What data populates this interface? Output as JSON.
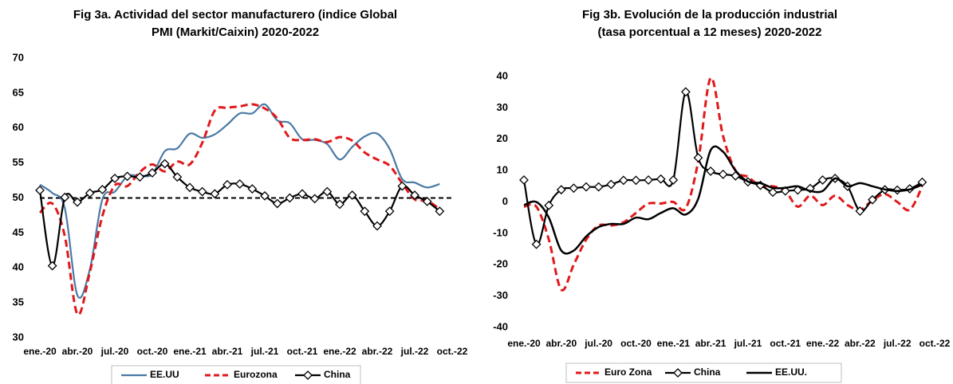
{
  "chart_data": [
    {
      "type": "line",
      "title": [
        "Fig 3a. Actividad del sector manufacturero (indice Global",
        "PMI (Markit/Caixin)  2020-2022"
      ],
      "categories": [
        "ene.-20",
        null,
        null,
        "abr.-20",
        null,
        null,
        "jul.-20",
        null,
        null,
        "oct.-20",
        null,
        null,
        "ene.-21",
        null,
        null,
        "abr.-21",
        null,
        null,
        "jul.-21",
        null,
        null,
        "oct.-21",
        null,
        null,
        "ene.-22",
        null,
        null,
        "abr.-22",
        null,
        null,
        "jul.-22",
        null,
        null,
        "oct.-22"
      ],
      "ylim": [
        30,
        70
      ],
      "yticks": [
        30,
        35,
        40,
        45,
        50,
        55,
        60,
        65,
        70
      ],
      "reference_line": 50,
      "series": [
        {
          "name": "EE.UU",
          "color": "#4a7aa6",
          "dash": false,
          "marker": "none",
          "values": [
            51.9,
            50.7,
            48.5,
            36.1,
            39.8,
            49.8,
            50.9,
            53.1,
            53.2,
            53.4,
            56.7,
            57.1,
            59.2,
            58.6,
            59.1,
            60.5,
            62.1,
            62.1,
            63.4,
            61.1,
            60.7,
            58.4,
            58.3,
            57.7,
            55.5,
            57.3,
            58.8,
            59.2,
            57.0,
            52.7,
            52.2,
            51.5,
            52.0,
            null
          ]
        },
        {
          "name": "Eurozona",
          "color": "#e0191b",
          "dash": true,
          "marker": "none",
          "values": [
            47.9,
            49.2,
            44.5,
            33.4,
            39.4,
            47.4,
            51.8,
            51.7,
            53.7,
            54.8,
            53.8,
            55.2,
            54.8,
            57.9,
            62.5,
            62.9,
            63.1,
            63.4,
            62.8,
            61.4,
            58.6,
            58.3,
            58.4,
            58.0,
            58.7,
            58.2,
            56.5,
            55.5,
            54.6,
            52.1,
            49.8,
            49.6,
            48.4,
            null
          ]
        },
        {
          "name": "China",
          "color": "#000000",
          "dash": false,
          "marker": "diamond",
          "values": [
            51.1,
            40.3,
            50.1,
            49.4,
            50.7,
            51.2,
            52.8,
            53.1,
            53.0,
            53.6,
            54.9,
            53.0,
            51.5,
            50.9,
            50.6,
            51.9,
            52.0,
            51.3,
            50.3,
            49.2,
            50.0,
            50.6,
            49.9,
            50.9,
            49.1,
            50.4,
            48.1,
            46.0,
            48.1,
            51.7,
            50.4,
            49.5,
            48.1,
            null
          ]
        }
      ]
    },
    {
      "type": "line",
      "title": [
        "Fig 3b. Evolución de la producción industrial",
        "(tasa porcentual a 12 meses) 2020-2022"
      ],
      "categories": [
        "ene.-20",
        null,
        null,
        "abr.-20",
        null,
        null,
        "jul.-20",
        null,
        null,
        "oct.-20",
        null,
        null,
        "ene.-21",
        null,
        null,
        "abr.-21",
        null,
        null,
        "jul.-21",
        null,
        null,
        "oct.-21",
        null,
        null,
        "ene.-22",
        null,
        null,
        "abr.-22",
        null,
        null,
        "jul.-22",
        null,
        null,
        "oct.-22"
      ],
      "ylim": [
        -40,
        40
      ],
      "yticks": [
        -40,
        -30,
        -20,
        -10,
        0,
        10,
        20,
        30,
        40
      ],
      "series": [
        {
          "name": "Euro Zona",
          "color": "#e0191b",
          "dash": true,
          "marker": "none",
          "values": [
            -1.5,
            -1.5,
            -12,
            -28,
            -20,
            -12,
            -7.5,
            -7.5,
            -6.5,
            -3.5,
            -0.5,
            -0.5,
            0,
            -2,
            13,
            39.5,
            21,
            10,
            8,
            5,
            5,
            3.5,
            -1.5,
            2,
            -1,
            2,
            -1,
            -2.5,
            0.5,
            2.5,
            0,
            -2.5,
            4.9,
            null
          ]
        },
        {
          "name": "China",
          "color": "#000000",
          "dash": false,
          "marker": "diamond",
          "values": [
            7,
            -13.5,
            -1.1,
            3.9,
            4.4,
            4.8,
            4.8,
            5.6,
            6.9,
            6.9,
            7.0,
            7.3,
            7.0,
            35.1,
            14.1,
            9.8,
            8.8,
            8.3,
            6.4,
            5.3,
            3.1,
            3.5,
            3.8,
            4.3,
            7.0,
            7.5,
            5.0,
            -2.9,
            0.7,
            3.9,
            3.8,
            4.2,
            6.3,
            null
          ]
        },
        {
          "name": "EE.UU.",
          "color": "#000000",
          "dash": false,
          "marker": "none",
          "width": 2.5,
          "values": [
            -1,
            0,
            -5,
            -15.5,
            -15.5,
            -11,
            -8,
            -7,
            -7,
            -5,
            -5.5,
            -3.5,
            -2,
            -4,
            1,
            16.5,
            16,
            10,
            6.5,
            6,
            4.5,
            4.5,
            5,
            3.5,
            3.5,
            7.5,
            5,
            6,
            5,
            4,
            3.5,
            4,
            5.5,
            null
          ]
        }
      ]
    }
  ]
}
